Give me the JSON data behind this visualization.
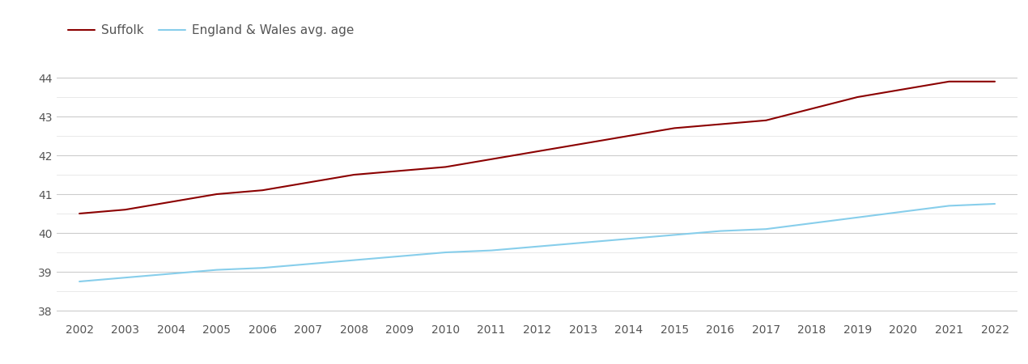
{
  "suffolk": {
    "years": [
      2002,
      2003,
      2004,
      2005,
      2006,
      2007,
      2008,
      2009,
      2010,
      2011,
      2012,
      2013,
      2014,
      2015,
      2016,
      2017,
      2018,
      2019,
      2020,
      2021,
      2022
    ],
    "values": [
      40.5,
      40.6,
      40.8,
      41.0,
      41.1,
      41.3,
      41.5,
      41.6,
      41.7,
      41.9,
      42.1,
      42.3,
      42.5,
      42.7,
      42.8,
      42.9,
      43.2,
      43.5,
      43.7,
      43.9,
      43.9
    ],
    "color": "#8B0000",
    "label": "Suffolk",
    "linewidth": 1.5
  },
  "england_wales": {
    "years": [
      2002,
      2003,
      2004,
      2005,
      2006,
      2007,
      2008,
      2009,
      2010,
      2011,
      2012,
      2013,
      2014,
      2015,
      2016,
      2017,
      2018,
      2019,
      2020,
      2021,
      2022
    ],
    "values": [
      38.75,
      38.85,
      38.95,
      39.05,
      39.1,
      39.2,
      39.3,
      39.4,
      39.5,
      39.55,
      39.65,
      39.75,
      39.85,
      39.95,
      40.05,
      40.1,
      40.25,
      40.4,
      40.55,
      40.7,
      40.75
    ],
    "color": "#87CEEB",
    "label": "England & Wales avg. age",
    "linewidth": 1.5
  },
  "ylim": [
    37.75,
    44.5
  ],
  "yticks_major": [
    38,
    39,
    40,
    41,
    42,
    43,
    44
  ],
  "yticks_minor": [
    38.5,
    39.5,
    40.5,
    41.5,
    42.5,
    43.5
  ],
  "xlim": [
    2001.5,
    2022.5
  ],
  "background_color": "#ffffff",
  "grid_color_major": "#cccccc",
  "grid_color_minor": "#e5e5e5",
  "tick_color": "#555555",
  "legend_fontsize": 11,
  "tick_fontsize": 10
}
